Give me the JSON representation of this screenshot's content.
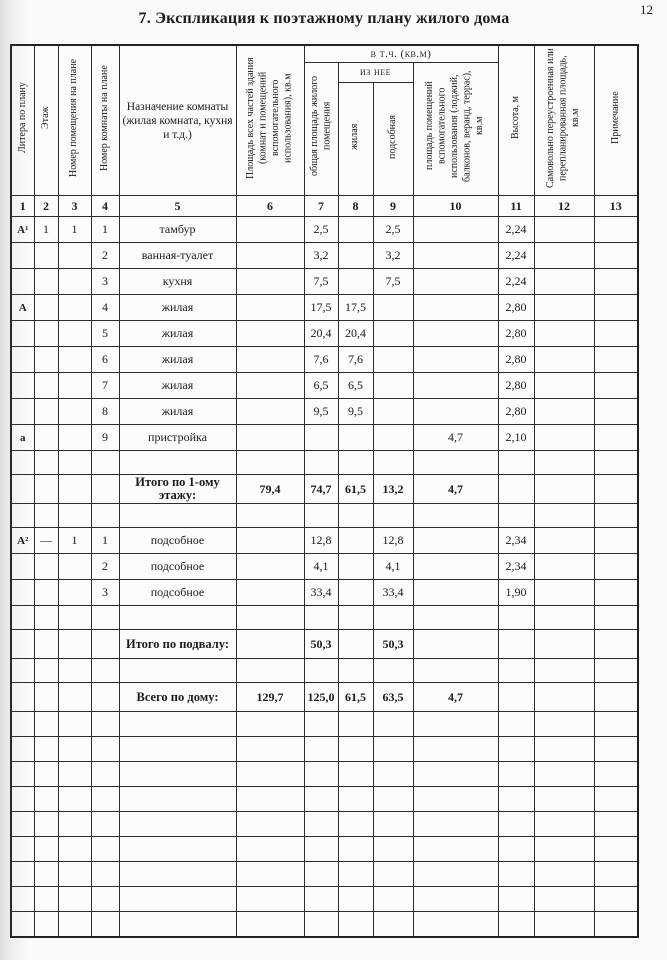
{
  "page": {
    "number": "12",
    "title": "7. Экспликация к поэтажному плану жилого дома"
  },
  "table": {
    "group_headers": {
      "incl_sqm": "в т.ч. (кв.м)",
      "of_it": "из нее"
    },
    "columns": [
      {
        "n": "1",
        "label": "Литера по плану"
      },
      {
        "n": "2",
        "label": "Этаж"
      },
      {
        "n": "3",
        "label": "Номер помещения на плане"
      },
      {
        "n": "4",
        "label": "Номер комнаты на плане"
      },
      {
        "n": "5",
        "label": "Назначение комнаты (жилая комната, кухня и т.д.)"
      },
      {
        "n": "6",
        "label": "Площадь всех частей здания (комнат и помещений вспомогательного использования), кв.м"
      },
      {
        "n": "7",
        "label": "общая площадь жилого помещения"
      },
      {
        "n": "8",
        "label": "жилая"
      },
      {
        "n": "9",
        "label": "подсобная"
      },
      {
        "n": "10",
        "label": "площадь помещений вспомогательного использования (лоджий, балконов, веранд, террас), кв.м"
      },
      {
        "n": "11",
        "label": "Высота, м"
      },
      {
        "n": "12",
        "label": "Самовольно переустроенная или перепланированная площадь, кв.м"
      },
      {
        "n": "13",
        "label": "Примечание"
      }
    ],
    "rows": [
      {
        "type": "data",
        "cells": [
          "А¹",
          "1",
          "1",
          "1",
          "тамбур",
          "",
          "2,5",
          "",
          "2,5",
          "",
          "2,24",
          "",
          ""
        ]
      },
      {
        "type": "data",
        "cells": [
          "",
          "",
          "",
          "2",
          "ванная-туалет",
          "",
          "3,2",
          "",
          "3,2",
          "",
          "2,24",
          "",
          ""
        ]
      },
      {
        "type": "data",
        "cells": [
          "",
          "",
          "",
          "3",
          "кухня",
          "",
          "7,5",
          "",
          "7,5",
          "",
          "2,24",
          "",
          ""
        ]
      },
      {
        "type": "data",
        "cells": [
          "А",
          "",
          "",
          "4",
          "жилая",
          "",
          "17,5",
          "17,5",
          "",
          "",
          "2,80",
          "",
          ""
        ]
      },
      {
        "type": "data",
        "cells": [
          "",
          "",
          "",
          "5",
          "жилая",
          "",
          "20,4",
          "20,4",
          "",
          "",
          "2,80",
          "",
          ""
        ]
      },
      {
        "type": "data",
        "cells": [
          "",
          "",
          "",
          "6",
          "жилая",
          "",
          "7,6",
          "7,6",
          "",
          "",
          "2,80",
          "",
          ""
        ]
      },
      {
        "type": "data",
        "cells": [
          "",
          "",
          "",
          "7",
          "жилая",
          "",
          "6,5",
          "6,5",
          "",
          "",
          "2,80",
          "",
          ""
        ]
      },
      {
        "type": "data",
        "cells": [
          "",
          "",
          "",
          "8",
          "жилая",
          "",
          "9,5",
          "9,5",
          "",
          "",
          "2,80",
          "",
          ""
        ]
      },
      {
        "type": "data",
        "cells": [
          "а",
          "",
          "",
          "9",
          "пристройка",
          "",
          "",
          "",
          "",
          "4,7",
          "2,10",
          "",
          ""
        ]
      },
      {
        "type": "spacer",
        "cells": [
          "",
          "",
          "",
          "",
          "",
          "",
          "",
          "",
          "",
          "",
          "",
          "",
          ""
        ]
      },
      {
        "type": "total",
        "cells": [
          "",
          "",
          "",
          "",
          "Итого по 1-ому этажу:",
          "79,4",
          "74,7",
          "61,5",
          "13,2",
          "4,7",
          "",
          "",
          ""
        ]
      },
      {
        "type": "spacer",
        "cells": [
          "",
          "",
          "",
          "",
          "",
          "",
          "",
          "",
          "",
          "",
          "",
          "",
          ""
        ]
      },
      {
        "type": "data",
        "cells": [
          "А²",
          "—",
          "1",
          "1",
          "подсобное",
          "",
          "12,8",
          "",
          "12,8",
          "",
          "2,34",
          "",
          ""
        ]
      },
      {
        "type": "data",
        "cells": [
          "",
          "",
          "",
          "2",
          "подсобное",
          "",
          "4,1",
          "",
          "4,1",
          "",
          "2,34",
          "",
          ""
        ]
      },
      {
        "type": "data",
        "cells": [
          "",
          "",
          "",
          "3",
          "подсобное",
          "",
          "33,4",
          "",
          "33,4",
          "",
          "1,90",
          "",
          ""
        ]
      },
      {
        "type": "spacer",
        "cells": [
          "",
          "",
          "",
          "",
          "",
          "",
          "",
          "",
          "",
          "",
          "",
          "",
          ""
        ]
      },
      {
        "type": "total",
        "cells": [
          "",
          "",
          "",
          "",
          "Итого по подвалу:",
          "",
          "50,3",
          "",
          "50,3",
          "",
          "",
          "",
          ""
        ]
      },
      {
        "type": "spacer",
        "cells": [
          "",
          "",
          "",
          "",
          "",
          "",
          "",
          "",
          "",
          "",
          "",
          "",
          ""
        ]
      },
      {
        "type": "total",
        "cells": [
          "",
          "",
          "",
          "",
          "Всего по дому:",
          "129,7",
          "125,0",
          "61,5",
          "63,5",
          "4,7",
          "",
          "",
          ""
        ]
      },
      {
        "type": "tail",
        "cells": [
          "",
          "",
          "",
          "",
          "",
          "",
          "",
          "",
          "",
          "",
          "",
          "",
          ""
        ]
      },
      {
        "type": "tail",
        "cells": [
          "",
          "",
          "",
          "",
          "",
          "",
          "",
          "",
          "",
          "",
          "",
          "",
          ""
        ]
      },
      {
        "type": "tail",
        "cells": [
          "",
          "",
          "",
          "",
          "",
          "",
          "",
          "",
          "",
          "",
          "",
          "",
          ""
        ]
      },
      {
        "type": "tail",
        "cells": [
          "",
          "",
          "",
          "",
          "",
          "",
          "",
          "",
          "",
          "",
          "",
          "",
          ""
        ]
      },
      {
        "type": "tail",
        "cells": [
          "",
          "",
          "",
          "",
          "",
          "",
          "",
          "",
          "",
          "",
          "",
          "",
          ""
        ]
      },
      {
        "type": "tail",
        "cells": [
          "",
          "",
          "",
          "",
          "",
          "",
          "",
          "",
          "",
          "",
          "",
          "",
          ""
        ]
      },
      {
        "type": "tail",
        "cells": [
          "",
          "",
          "",
          "",
          "",
          "",
          "",
          "",
          "",
          "",
          "",
          "",
          ""
        ]
      },
      {
        "type": "tail",
        "cells": [
          "",
          "",
          "",
          "",
          "",
          "",
          "",
          "",
          "",
          "",
          "",
          "",
          ""
        ]
      },
      {
        "type": "tail",
        "cells": [
          "",
          "",
          "",
          "",
          "",
          "",
          "",
          "",
          "",
          "",
          "",
          "",
          ""
        ]
      }
    ]
  }
}
